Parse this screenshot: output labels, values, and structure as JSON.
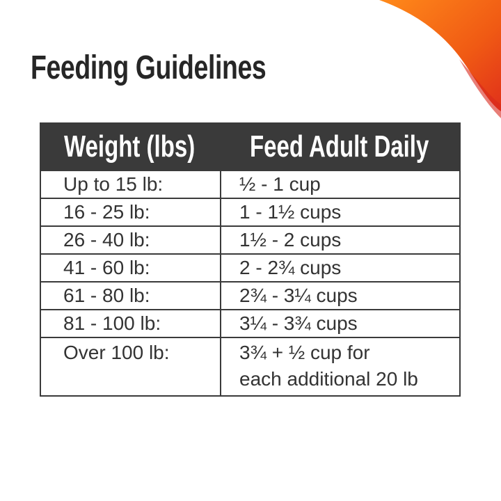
{
  "header": {
    "title": "Feeding Guidelines"
  },
  "table": {
    "columns": [
      "Weight (lbs)",
      "Feed Adult Daily"
    ],
    "rows": [
      [
        "Up to 15 lb:",
        [
          "½ - 1 cup"
        ]
      ],
      [
        "16 - 25 lb:",
        [
          "1 - 1½ cups"
        ]
      ],
      [
        "26 - 40 lb:",
        [
          "1½ - 2 cups"
        ]
      ],
      [
        "41 - 60 lb:",
        [
          "2 - 2¾ cups"
        ]
      ],
      [
        "61 - 80 lb:",
        [
          "2¾ - 3¼ cups"
        ]
      ],
      [
        "81 - 100 lb:",
        [
          "3¼ - 3¾ cups"
        ]
      ],
      [
        "Over 100 lb:",
        [
          "3¾ + ½ cup for",
          "each additional 20 lb"
        ]
      ]
    ]
  }
}
